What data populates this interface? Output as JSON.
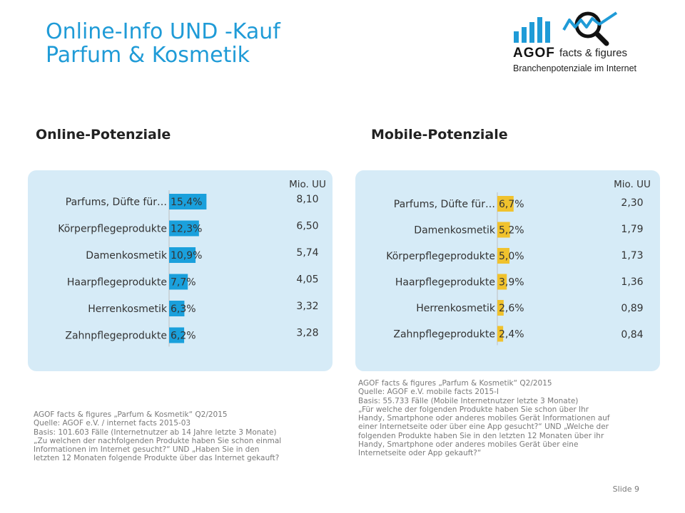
{
  "title": {
    "line1": "Online-Info UND -Kauf",
    "line2": "Parfum & Kosmetik"
  },
  "logo": {
    "brand": "AGOF",
    "tagline": "facts & figures",
    "subtitle": "Branchenpotenziale im Internet"
  },
  "colors": {
    "accent": "#1f9bd7",
    "online_bar": "#1aa0dc",
    "mobile_bar": "#f0c22d",
    "panel_bg": "#d6ebf7"
  },
  "chart_data": [
    {
      "type": "bar",
      "orientation": "horizontal",
      "title": "Online-Potenziale",
      "unit_header": "Mio. UU",
      "categories": [
        "Parfums, Düfte für…",
        "Körperpflegeprodukte",
        "Damenkosmetik",
        "Haarpflegeprodukte",
        "Herrenkosmetik",
        "Zahnpflegeprodukte"
      ],
      "values": [
        15.4,
        12.3,
        10.9,
        7.7,
        6.3,
        6.2
      ],
      "value_labels": [
        "15,4%",
        "12,3%",
        "10,9%",
        "7,7%",
        "6,3%",
        "6,2%"
      ],
      "mio_uu": [
        "8,10",
        "6,50",
        "5,74",
        "4,05",
        "3,32",
        "3,28"
      ],
      "color": "#1aa0dc"
    },
    {
      "type": "bar",
      "orientation": "horizontal",
      "title": "Mobile-Potenziale",
      "unit_header": "Mio. UU",
      "categories": [
        "Parfums, Düfte für…",
        "Damenkosmetik",
        "Körperpflegeprodukte",
        "Haarpflegeprodukte",
        "Herrenkosmetik",
        "Zahnpflegeprodukte"
      ],
      "values": [
        6.7,
        5.2,
        5.0,
        3.9,
        2.6,
        2.4
      ],
      "value_labels": [
        "6,7%",
        "5,2%",
        "5,0%",
        "3,9%",
        "2,6%",
        "2,4%"
      ],
      "mio_uu": [
        "2,30",
        "1,79",
        "1,73",
        "1,36",
        "0,89",
        "0,84"
      ],
      "color": "#f0c22d"
    }
  ],
  "source_online": [
    "AGOF facts & figures „Parfum & Kosmetik“ Q2/2015",
    "Quelle: AGOF e.V. / internet facts 2015-03",
    "Basis: 101.603 Fälle (Internetnutzer ab 14 Jahre letzte 3 Monate)",
    "„Zu welchen der nachfolgenden Produkte haben Sie schon einmal",
    "Informationen im Internet gesucht?“ UND „Haben Sie in den",
    "letzten 12 Monaten folgende Produkte über das Internet gekauft?"
  ],
  "source_mobile": [
    "AGOF facts & figures „Parfum & Kosmetik“ Q2/2015",
    "Quelle: AGOF e.V. mobile facts 2015-I",
    "Basis: 55.733 Fälle (Mobile Internetnutzer letzte 3 Monate)",
    "„Für welche der folgenden Produkte haben Sie schon über Ihr",
    "Handy, Smartphone oder anderes mobiles Gerät Informationen auf",
    "einer Internetseite oder über eine App gesucht?“ UND „Welche der",
    "folgenden Produkte haben Sie in den letzten 12 Monaten über ihr",
    "Handy, Smartphone oder anderes mobiles Gerät über eine",
    "Internetseite oder App gekauft?“"
  ],
  "slide": "Slide 9"
}
